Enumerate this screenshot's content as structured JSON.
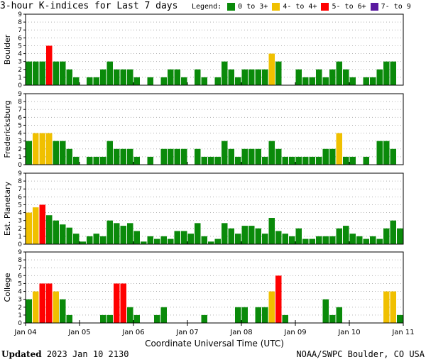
{
  "header": {
    "title": "3-hour K-indices for Last 7 days",
    "legend_label": "Legend:",
    "legend": [
      {
        "label": "0 to 3+",
        "color": "#0a8a0a"
      },
      {
        "label": "4- to 4+",
        "color": "#f0c000"
      },
      {
        "label": "5- to 6+",
        "color": "#ff0000"
      },
      {
        "label": "7- to 9",
        "color": "#5a1aa0"
      }
    ]
  },
  "footer": {
    "updated_label": "Updated",
    "updated_time": "2023 Jan 10 2130",
    "credit": "NOAA/SWPC Boulder, CO USA"
  },
  "chart_data": {
    "type": "bar",
    "xlabel": "Coordinate Universal Time (UTC)",
    "x_ticks": [
      "Jan 04",
      "Jan 05",
      "Jan 06",
      "Jan 07",
      "Jan 08",
      "Jan 09",
      "Jan 10",
      "Jan 11"
    ],
    "ylim": [
      0,
      9
    ],
    "y_ticks": [
      "0",
      "1",
      "2",
      "3",
      "4",
      "5",
      "6",
      "7",
      "8",
      "9"
    ],
    "bins_per_day": 8,
    "color_thresholds": {
      "green_max": 3.67,
      "yellow_max": 4.67,
      "red_max": 6.67
    },
    "colors": {
      "green": "#0a8a0a",
      "yellow": "#f0c000",
      "red": "#ff0000",
      "purple": "#5a1aa0"
    },
    "panels": [
      {
        "name": "Boulder",
        "values": [
          3,
          3,
          3,
          5,
          3,
          3,
          2,
          1,
          0,
          1,
          1,
          2,
          3,
          2,
          2,
          2,
          1,
          0,
          1,
          0,
          1,
          2,
          2,
          1,
          0,
          2,
          1,
          0,
          1,
          3,
          2,
          1,
          2,
          2,
          2,
          2,
          4,
          3,
          0,
          0,
          2,
          1,
          1,
          2,
          1,
          2,
          3,
          2,
          1,
          0,
          1,
          1,
          2,
          3,
          3,
          0
        ]
      },
      {
        "name": "Fredericksburg",
        "values": [
          3,
          4,
          4,
          4,
          3,
          3,
          2,
          1,
          0,
          1,
          1,
          1,
          3,
          2,
          2,
          2,
          1,
          0,
          1,
          0,
          2,
          2,
          2,
          2,
          0,
          2,
          1,
          1,
          1,
          3,
          2,
          1,
          2,
          2,
          2,
          1,
          3,
          2,
          1,
          1,
          1,
          1,
          1,
          1,
          2,
          2,
          4,
          1,
          1,
          0,
          1,
          0,
          3,
          3,
          2,
          0
        ]
      },
      {
        "name": "Est. Planetary",
        "values": [
          4,
          4.67,
          5,
          3.67,
          3,
          2.5,
          2.1,
          1.33,
          0.33,
          1,
          1.33,
          1,
          3,
          2.67,
          2.33,
          2.67,
          1.67,
          0.33,
          1,
          0.67,
          1,
          0.67,
          1.67,
          1.67,
          1.33,
          2.67,
          1,
          0.33,
          0.67,
          2.67,
          2,
          1.33,
          2.33,
          2.33,
          2,
          1.33,
          3.33,
          1.67,
          1.33,
          1,
          2,
          0.67,
          0.67,
          1,
          1,
          1,
          2,
          2.33,
          1.33,
          1,
          0.67,
          1,
          0.67,
          2,
          3,
          2
        ]
      },
      {
        "name": "College",
        "values": [
          3,
          4,
          5,
          5,
          4,
          3,
          1,
          0,
          0,
          0,
          0,
          1,
          1,
          5,
          5,
          2,
          1,
          0,
          0,
          1,
          2,
          0,
          0,
          0,
          0,
          0,
          1,
          0,
          0,
          0,
          0,
          2,
          2,
          0,
          2,
          2,
          4,
          6,
          1,
          0,
          0,
          0,
          0,
          0,
          3,
          1,
          2,
          0,
          0,
          0,
          0,
          0,
          0,
          4,
          4,
          1
        ]
      }
    ]
  }
}
